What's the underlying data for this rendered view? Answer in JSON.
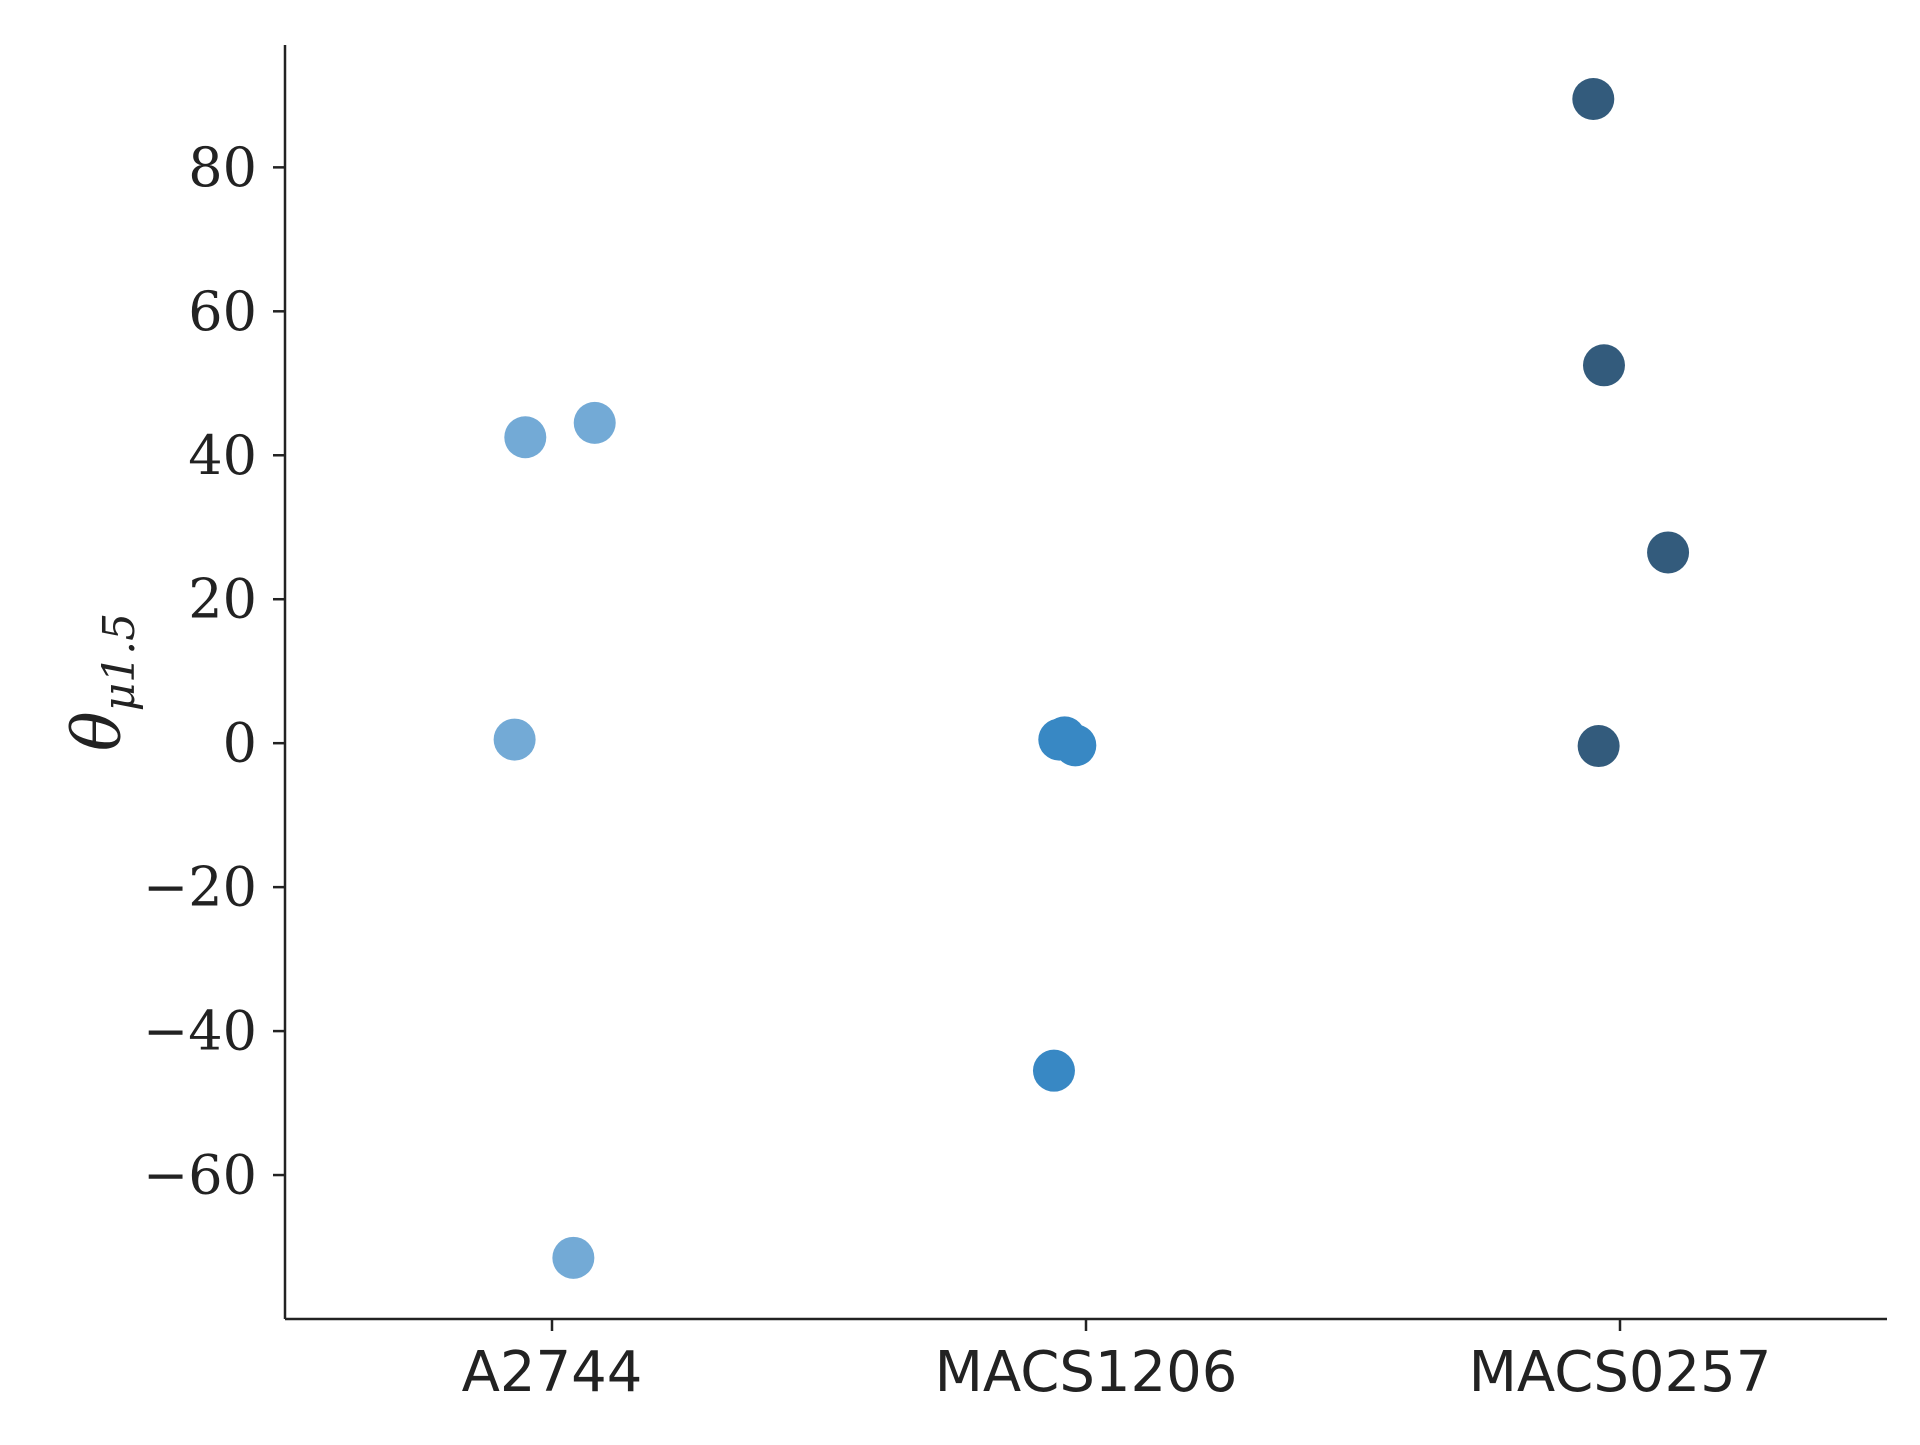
{
  "chart_data": {
    "type": "scatter",
    "categories": [
      "A2744",
      "MACS1206",
      "MACS0257"
    ],
    "ylabel": {
      "symbol": "θ",
      "subscript": "μ1.5"
    },
    "ylim": [
      -80,
      97
    ],
    "yticks": [
      -60,
      -40,
      -20,
      0,
      20,
      40,
      60,
      80
    ],
    "ytick_labels": [
      "−60",
      "−40",
      "−20",
      "0",
      "20",
      "40",
      "60",
      "80"
    ],
    "grid": false,
    "series": [
      {
        "category": "A2744",
        "color": "#73aad6",
        "points": [
          {
            "jitter": -0.07,
            "y": 0.5
          },
          {
            "jitter": -0.05,
            "y": 42.5
          },
          {
            "jitter": 0.08,
            "y": 44.5
          },
          {
            "jitter": 0.04,
            "y": -71.5
          }
        ]
      },
      {
        "category": "MACS1206",
        "color": "#3888c4",
        "points": [
          {
            "jitter": -0.05,
            "y": 0.5
          },
          {
            "jitter": -0.04,
            "y": 0.8
          },
          {
            "jitter": -0.02,
            "y": -0.3
          },
          {
            "jitter": -0.06,
            "y": -45.5
          }
        ]
      },
      {
        "category": "MACS0257",
        "color": "#335b7c",
        "points": [
          {
            "jitter": -0.05,
            "y": 89.5
          },
          {
            "jitter": -0.03,
            "y": 52.5
          },
          {
            "jitter": 0.09,
            "y": 26.5
          },
          {
            "jitter": -0.04,
            "y": -0.4
          }
        ]
      }
    ]
  }
}
